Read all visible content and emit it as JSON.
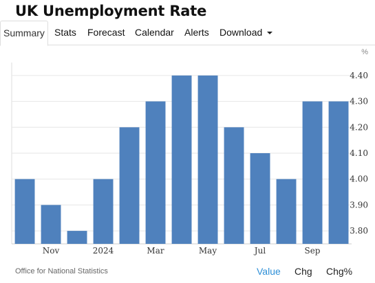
{
  "page_title": "UK Unemployment Rate",
  "tabs": [
    {
      "label": "Summary",
      "active": true
    },
    {
      "label": "Stats"
    },
    {
      "label": "Forecast"
    },
    {
      "label": "Calendar"
    },
    {
      "label": "Alerts"
    },
    {
      "label": "Download",
      "icon": "chevron-down-icon"
    }
  ],
  "chart_data": {
    "type": "bar",
    "title": "UK Unemployment Rate",
    "unit": "%",
    "categories": [
      "",
      "Nov",
      "",
      "2024",
      "",
      "Mar",
      "",
      "May",
      "",
      "Jul",
      "",
      "Sep",
      ""
    ],
    "values": [
      4.0,
      3.9,
      3.8,
      4.0,
      4.2,
      4.3,
      4.4,
      4.4,
      4.2,
      4.1,
      4.0,
      4.3,
      4.3
    ],
    "ylim": [
      3.75,
      4.45
    ],
    "yticks": [
      "3.80",
      "3.90",
      "4.00",
      "4.10",
      "4.20",
      "4.30",
      "4.40"
    ],
    "grid": true,
    "bar_color": "#4f81bd"
  },
  "source": "Office for National Statistics",
  "view_tabs": [
    {
      "label": "Value",
      "active": true
    },
    {
      "label": "Chg"
    },
    {
      "label": "Chg%"
    }
  ],
  "colors": {
    "accent": "#2d8fd7",
    "bar": "#4f81bd"
  }
}
